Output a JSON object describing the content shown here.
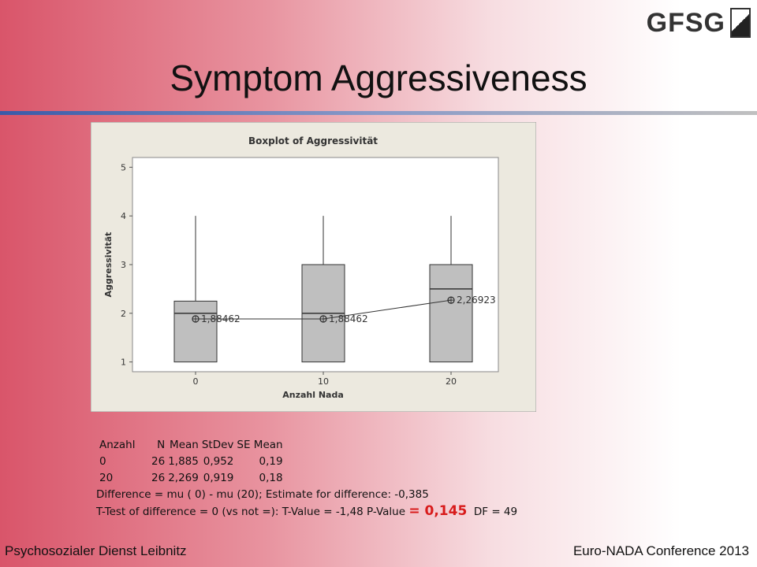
{
  "slide": {
    "title": "Symptom Aggressiveness",
    "logo": "GFSG",
    "footer_left": "Psychosozialer Dienst Leibnitz",
    "footer_right": "Euro-NADA Conference 2013"
  },
  "stats": {
    "header": [
      "Anzahl",
      "N",
      "Mean",
      "StDev",
      "SE Mean"
    ],
    "rows": [
      [
        "0",
        "26",
        "1,885",
        "0,952",
        "0,19"
      ],
      [
        "20",
        "26",
        "2,269",
        "0,919",
        "0,18"
      ]
    ],
    "difference": "Difference = mu ( 0) - mu (20); Estimate for difference:  -0,385",
    "ttest": "T-Test of difference = 0 (vs not =): T-Value = -1,48  P-Value",
    "p_value": "= 0,145",
    "df": "DF = 49"
  },
  "chart_data": {
    "type": "boxplot",
    "title": "Boxplot of Aggressivität",
    "x_label": "Anzahl Nada",
    "y_label": "Aggressivität",
    "categories": [
      "0",
      "10",
      "20"
    ],
    "whisker_low": [
      1,
      1,
      1
    ],
    "q1": [
      1,
      1,
      1
    ],
    "median": [
      2,
      2,
      2.5
    ],
    "q3": [
      2.25,
      3,
      3
    ],
    "whisker_high": [
      4,
      4,
      4
    ],
    "means": [
      1.88462,
      1.88462,
      2.26923
    ],
    "value_labels": [
      "1,88462",
      "1,88462",
      "2,26923"
    ],
    "color": "#bfbfbf",
    "ylim": [
      0.8,
      5.2
    ],
    "yticks": [
      1,
      2,
      3,
      4,
      5
    ]
  }
}
